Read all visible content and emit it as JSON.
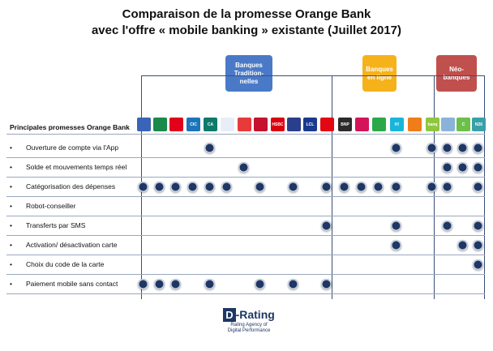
{
  "title_line1": "Comparaison de la promesse Orange Bank",
  "title_line2": "avec l'offre « mobile banking » existante (Juillet 2017)",
  "groups": {
    "traditionnelles": "Banques Tradition-nelles",
    "en_ligne": "Banques en ligne",
    "neo": "Néo-banques"
  },
  "header_label": "Principales promesses Orange Bank",
  "colors": {
    "dot": "#1f3763",
    "trad": "#4a7ac7",
    "ligne": "#f5b21b",
    "neo": "#c0504d"
  },
  "logos": [
    {
      "t": "",
      "c": "#3a64b8"
    },
    {
      "t": "",
      "c": "#1a8a4a"
    },
    {
      "t": "",
      "c": "#e2001a"
    },
    {
      "t": "CIC",
      "c": "#1c74bb"
    },
    {
      "t": "CA",
      "c": "#0f7a6b"
    },
    {
      "t": "",
      "c": "#e8eef7"
    },
    {
      "t": "",
      "c": "#e83a3a"
    },
    {
      "t": "",
      "c": "#c4122f"
    },
    {
      "t": "HSBC",
      "c": "#db0011"
    },
    {
      "t": "",
      "c": "#2a3f8c"
    },
    {
      "t": "LCL",
      "c": "#1b3a8f"
    },
    {
      "t": "",
      "c": "#e30613"
    },
    {
      "t": "BNP",
      "c": "#2b2b2b"
    },
    {
      "t": "",
      "c": "#d4145a"
    },
    {
      "t": "",
      "c": "#2ca84a"
    },
    {
      "t": "H!",
      "c": "#19b5d8"
    },
    {
      "t": "",
      "c": "#ef7d1a"
    },
    {
      "t": "banq",
      "c": "#8dc63f"
    },
    {
      "t": "",
      "c": "#8bb3d9"
    },
    {
      "t": "C",
      "c": "#6cc04a"
    },
    {
      "t": "N26",
      "c": "#3aa0a8"
    }
  ],
  "rows": [
    {
      "label": "Ouverture de compte via l'App",
      "dots": [
        4,
        15,
        17,
        18,
        19,
        20
      ]
    },
    {
      "label": "Solde et mouvements temps réel",
      "dots": [
        6,
        18,
        19,
        20
      ]
    },
    {
      "label": "Catégorisation des dépenses",
      "dots": [
        0,
        1,
        2,
        3,
        4,
        5,
        7,
        9,
        11,
        12,
        13,
        14,
        15,
        17,
        18,
        20
      ]
    },
    {
      "label": "Robot-conseiller",
      "dots": []
    },
    {
      "label": "Transferts par SMS",
      "dots": [
        11,
        15,
        18,
        20
      ]
    },
    {
      "label": "Activation/ désactivation carte",
      "dots": [
        15,
        19,
        20
      ]
    },
    {
      "label": "Choix du code de la carte",
      "dots": [
        20
      ]
    },
    {
      "label": "Paiement mobile sans contact",
      "dots": [
        0,
        1,
        2,
        4,
        7,
        9,
        11
      ]
    }
  ],
  "bullet": "•",
  "drating": {
    "d": "D",
    "rating": "-Rating",
    "sub1": "Rating Agency of",
    "sub2": "Digital Performance"
  }
}
